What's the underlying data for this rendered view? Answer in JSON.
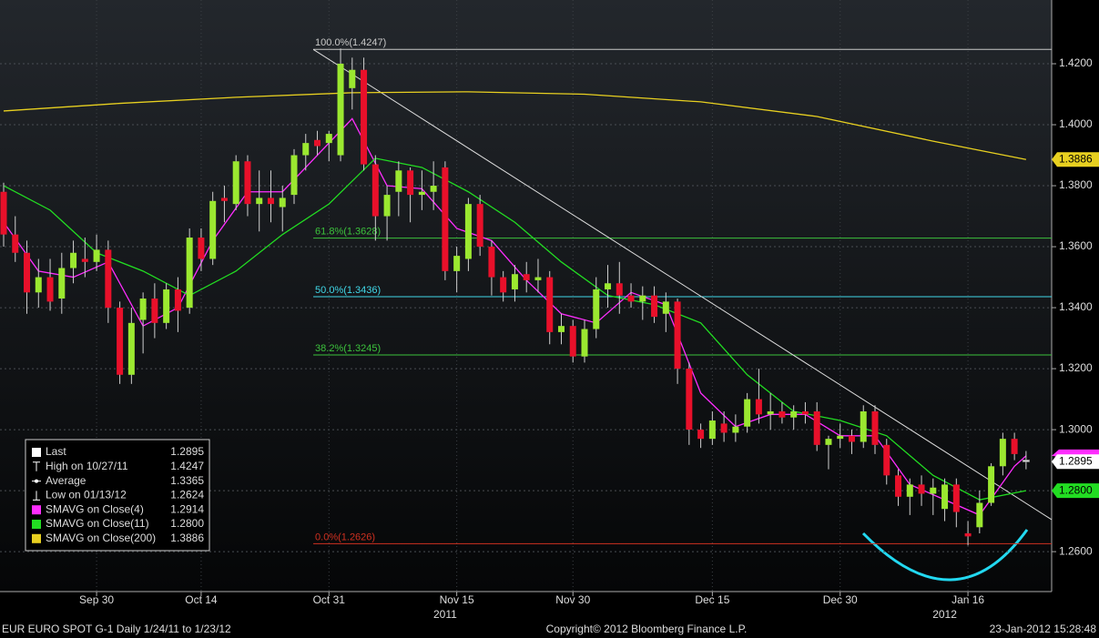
{
  "chart_data": {
    "type": "candlestick",
    "categories": [
      null,
      null,
      null,
      null,
      null,
      null,
      null,
      null,
      "Sep 30",
      null,
      null,
      null,
      null,
      null,
      null,
      null,
      null,
      "Oct 14",
      null,
      null,
      null,
      null,
      null,
      null,
      null,
      null,
      null,
      null,
      "Oct 31",
      null,
      null,
      null,
      null,
      null,
      null,
      null,
      null,
      null,
      null,
      "Nov 15",
      null,
      null,
      null,
      null,
      null,
      null,
      null,
      null,
      null,
      "Nov 30",
      null,
      null,
      null,
      null,
      null,
      null,
      null,
      null,
      null,
      null,
      null,
      "Dec 15",
      null,
      null,
      null,
      null,
      null,
      null,
      null,
      null,
      null,
      null,
      "Dec 30",
      null,
      null,
      null,
      null,
      null,
      null,
      null,
      null,
      null,
      null,
      "Jan 16",
      null,
      null,
      null,
      null,
      null
    ],
    "open": [
      1.378,
      1.364,
      1.358,
      1.345,
      1.35,
      1.343,
      1.353,
      1.356,
      1.355,
      1.359,
      1.34,
      1.318,
      1.336,
      1.343,
      1.335,
      1.346,
      1.34,
      1.363,
      1.356,
      1.376,
      1.374,
      1.388,
      1.374,
      1.376,
      1.373,
      1.377,
      1.39,
      1.395,
      1.394,
      1.39,
      1.412,
      1.418,
      1.387,
      1.37,
      1.378,
      1.385,
      1.377,
      1.378,
      1.386,
      1.352,
      1.356,
      1.374,
      1.36,
      1.35,
      1.346,
      1.351,
      1.349,
      1.35,
      1.332,
      1.334,
      1.324,
      1.333,
      1.346,
      1.348,
      1.344,
      1.342,
      1.344,
      1.338,
      1.342,
      1.32,
      1.3,
      1.297,
      1.302,
      1.299,
      1.301,
      1.31,
      1.305,
      1.306,
      1.304,
      1.306,
      1.306,
      1.295,
      1.297,
      1.298,
      1.296,
      1.306,
      1.295,
      1.285,
      1.278,
      1.282,
      1.279,
      1.274,
      1.282,
      1.266,
      1.268,
      1.276,
      1.288,
      1.297,
      1.29
    ],
    "high": [
      1.381,
      1.37,
      1.362,
      1.356,
      1.356,
      1.358,
      1.362,
      1.363,
      1.364,
      1.362,
      1.342,
      1.34,
      1.345,
      1.348,
      1.348,
      1.35,
      1.366,
      1.366,
      1.378,
      1.38,
      1.39,
      1.39,
      1.385,
      1.385,
      1.38,
      1.392,
      1.397,
      1.398,
      1.398,
      1.425,
      1.422,
      1.422,
      1.39,
      1.38,
      1.388,
      1.386,
      1.385,
      1.388,
      1.388,
      1.36,
      1.376,
      1.377,
      1.362,
      1.352,
      1.354,
      1.355,
      1.356,
      1.352,
      1.338,
      1.336,
      1.336,
      1.35,
      1.354,
      1.355,
      1.348,
      1.347,
      1.347,
      1.345,
      1.343,
      1.322,
      1.302,
      1.306,
      1.306,
      1.305,
      1.312,
      1.32,
      1.312,
      1.309,
      1.308,
      1.309,
      1.309,
      1.298,
      1.302,
      1.3,
      1.308,
      1.308,
      1.297,
      1.287,
      1.284,
      1.285,
      1.284,
      1.284,
      1.284,
      1.27,
      1.28,
      1.289,
      1.299,
      1.299,
      1.293
    ],
    "low": [
      1.36,
      1.355,
      1.338,
      1.34,
      1.339,
      1.338,
      1.348,
      1.35,
      1.352,
      1.335,
      1.315,
      1.315,
      1.325,
      1.33,
      1.333,
      1.332,
      1.338,
      1.352,
      1.354,
      1.368,
      1.372,
      1.37,
      1.365,
      1.368,
      1.365,
      1.374,
      1.385,
      1.39,
      1.388,
      1.388,
      1.405,
      1.385,
      1.362,
      1.362,
      1.37,
      1.368,
      1.372,
      1.372,
      1.349,
      1.345,
      1.352,
      1.357,
      1.344,
      1.342,
      1.342,
      1.345,
      1.345,
      1.328,
      1.328,
      1.322,
      1.322,
      1.33,
      1.34,
      1.338,
      1.34,
      1.336,
      1.335,
      1.332,
      1.315,
      1.295,
      1.294,
      1.295,
      1.296,
      1.296,
      1.299,
      1.302,
      1.3,
      1.302,
      1.3,
      1.302,
      1.293,
      1.287,
      1.294,
      1.292,
      1.294,
      1.292,
      1.282,
      1.275,
      1.272,
      1.275,
      1.272,
      1.27,
      1.268,
      1.262,
      1.266,
      1.275,
      1.285,
      1.29,
      1.287
    ],
    "close": [
      1.364,
      1.358,
      1.345,
      1.35,
      1.342,
      1.353,
      1.358,
      1.355,
      1.359,
      1.34,
      1.318,
      1.335,
      1.343,
      1.335,
      1.346,
      1.339,
      1.363,
      1.356,
      1.375,
      1.375,
      1.388,
      1.374,
      1.376,
      1.374,
      1.376,
      1.39,
      1.394,
      1.393,
      1.397,
      1.42,
      1.418,
      1.387,
      1.37,
      1.377,
      1.385,
      1.377,
      1.378,
      1.38,
      1.352,
      1.357,
      1.374,
      1.36,
      1.35,
      1.345,
      1.351,
      1.349,
      1.35,
      1.332,
      1.334,
      1.324,
      1.333,
      1.346,
      1.348,
      1.344,
      1.342,
      1.344,
      1.337,
      1.342,
      1.32,
      1.3,
      1.297,
      1.303,
      1.299,
      1.301,
      1.31,
      1.305,
      1.306,
      1.304,
      1.306,
      1.305,
      1.295,
      1.297,
      1.298,
      1.296,
      1.306,
      1.295,
      1.285,
      1.278,
      1.282,
      1.279,
      1.281,
      1.282,
      1.273,
      1.265,
      1.276,
      1.288,
      1.297,
      1.292,
      1.2895
    ],
    "series": [
      {
        "name": "SMAVG on Close(4)",
        "color": "#ff2dff",
        "last": 1.2914,
        "x": [
          0,
          3,
          6,
          9,
          12,
          15,
          18,
          21,
          24,
          27,
          30,
          33,
          36,
          39,
          42,
          45,
          48,
          51,
          54,
          57,
          60,
          63,
          66,
          69,
          72,
          75,
          78,
          81,
          84,
          87,
          88
        ],
        "values": [
          1.368,
          1.352,
          1.35,
          1.355,
          1.334,
          1.34,
          1.362,
          1.378,
          1.378,
          1.39,
          1.402,
          1.38,
          1.379,
          1.366,
          1.362,
          1.349,
          1.338,
          1.335,
          1.345,
          1.341,
          1.312,
          1.301,
          1.305,
          1.305,
          1.298,
          1.298,
          1.282,
          1.277,
          1.272,
          1.288,
          1.2914
        ]
      },
      {
        "name": "SMAVG on Close(11)",
        "color": "#22dd22",
        "last": 1.28,
        "last_label": "1.2800",
        "x": [
          0,
          4,
          8,
          12,
          16,
          20,
          24,
          28,
          32,
          36,
          40,
          44,
          48,
          52,
          56,
          60,
          64,
          68,
          72,
          76,
          80,
          84,
          88
        ],
        "values": [
          1.38,
          1.372,
          1.358,
          1.352,
          1.344,
          1.352,
          1.364,
          1.374,
          1.389,
          1.386,
          1.378,
          1.368,
          1.355,
          1.344,
          1.341,
          1.335,
          1.318,
          1.306,
          1.303,
          1.298,
          1.285,
          1.277,
          1.28
        ]
      },
      {
        "name": "SMAVG on Close(200)",
        "color": "#e8d020",
        "last": 1.3886,
        "x": [
          0,
          10,
          20,
          30,
          40,
          50,
          60,
          70,
          80,
          88
        ],
        "values": [
          1.4045,
          1.407,
          1.409,
          1.4105,
          1.4108,
          1.41,
          1.4075,
          1.4027,
          1.3946,
          1.3886
        ]
      }
    ],
    "legend_items": [
      {
        "name": "Last",
        "value": 1.2895
      },
      {
        "name": "High on 10/27/11",
        "value": 1.4247
      },
      {
        "name": "Average",
        "value": 1.3365
      },
      {
        "name": "Low on 01/13/12",
        "value": 1.2624
      }
    ],
    "levels": [
      {
        "label": "100.0%(1.4247)",
        "value": 1.4247,
        "color": "#c8c8c8"
      },
      {
        "label": "61.8%(1.3628)",
        "value": 1.3628,
        "color": "#3cc23c"
      },
      {
        "label": "50.0%(1.3436)",
        "value": 1.3436,
        "color": "#40d8e8"
      },
      {
        "label": "38.2%(1.3245)",
        "value": 1.3245,
        "color": "#3cc23c"
      },
      {
        "label": "0.0%(1.2626)",
        "value": 1.2626,
        "color": "#d03020"
      }
    ],
    "trendline": [
      1.4247,
      1.2705
    ],
    "ylim": [
      1.2469,
      1.4409
    ],
    "yticks": [
      {
        "value": 1.26,
        "label": "1.2600"
      },
      {
        "value": 1.28,
        "label": "1.2800"
      },
      {
        "value": 1.3,
        "label": "1.3000"
      },
      {
        "value": 1.32,
        "label": "1.3200"
      },
      {
        "value": 1.34,
        "label": "1.3400"
      },
      {
        "value": 1.36,
        "label": "1.3600"
      },
      {
        "value": 1.38,
        "label": "1.3800"
      },
      {
        "value": 1.4,
        "label": "1.4000"
      },
      {
        "value": 1.42,
        "label": "1.4200"
      }
    ],
    "grid": true,
    "years": [
      {
        "label": "2011",
        "index": 38
      },
      {
        "label": "2012",
        "index": 81
      }
    ],
    "footer": {
      "left": "EUR  EURO SPOT    G-1   Daily   1/24/11 to 1/23/12",
      "center": "Copyright© 2012 Bloomberg Finance L.P.",
      "right": "23-Jan-2012 15:28:48"
    }
  }
}
